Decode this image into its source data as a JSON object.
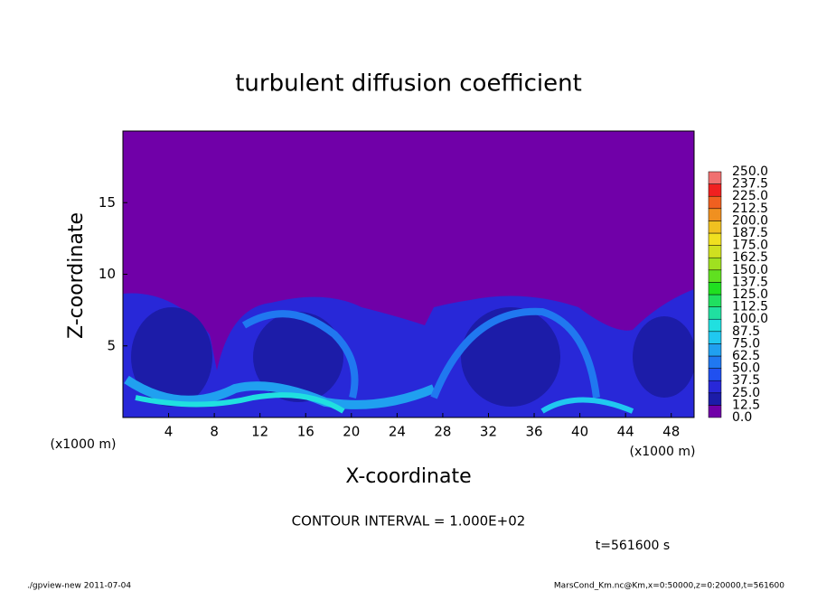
{
  "chart_data": {
    "type": "contour",
    "title": "turbulent diffusion coefficient",
    "x_label": "X-coordinate",
    "y_label": "Z-coordinate",
    "x_unit": "(x1000 m)",
    "y_unit": "(x1000 m)",
    "xlim": [
      0,
      50
    ],
    "xticks": [
      4,
      8,
      12,
      16,
      20,
      24,
      28,
      32,
      36,
      40,
      44,
      48
    ],
    "ylim": [
      0,
      20
    ],
    "yticks": [
      5,
      10,
      15
    ],
    "levels": [
      {
        "value": 0,
        "label": "0.0"
      },
      {
        "value": 12.5,
        "label": "12.5"
      },
      {
        "value": 25,
        "label": "25.0"
      },
      {
        "value": 37.5,
        "label": "37.5"
      },
      {
        "value": 50,
        "label": "50.0"
      },
      {
        "value": 62.5,
        "label": "62.5"
      },
      {
        "value": 75,
        "label": "75.0"
      },
      {
        "value": 87.5,
        "label": "87.5"
      },
      {
        "value": 100,
        "label": "100.0"
      },
      {
        "value": 112.5,
        "label": "112.5"
      },
      {
        "value": 125,
        "label": "125.0"
      },
      {
        "value": 137.5,
        "label": "137.5"
      },
      {
        "value": 150,
        "label": "150.0"
      },
      {
        "value": 162.5,
        "label": "162.5"
      },
      {
        "value": 175,
        "label": "175.0"
      },
      {
        "value": 187.5,
        "label": "187.5"
      },
      {
        "value": 200,
        "label": "200.0"
      },
      {
        "value": 212.5,
        "label": "212.5"
      },
      {
        "value": 225,
        "label": "225.0"
      },
      {
        "value": 237.5,
        "label": "237.5"
      },
      {
        "value": 250,
        "label": "250.0"
      }
    ],
    "colors": [
      "#7000a8",
      "#1c1ca8",
      "#2828d8",
      "#2050f0",
      "#2078f0",
      "#20a0f0",
      "#20c8f0",
      "#20e0e0",
      "#20e0a0",
      "#20e060",
      "#20e020",
      "#60e020",
      "#a0e020",
      "#d0e020",
      "#f0e020",
      "#f0c020",
      "#f09020",
      "#f06020",
      "#f02020",
      "#f07070"
    ],
    "annotation": "CONTOUR INTERVAL = 1.000E+02",
    "time_label": "t=561600 s",
    "footer_left": "./gpview-new  2011-07-04",
    "footer_right": "MarsCond_Km.nc@Km,x=0:50000,z=0:20000,t=561600"
  }
}
